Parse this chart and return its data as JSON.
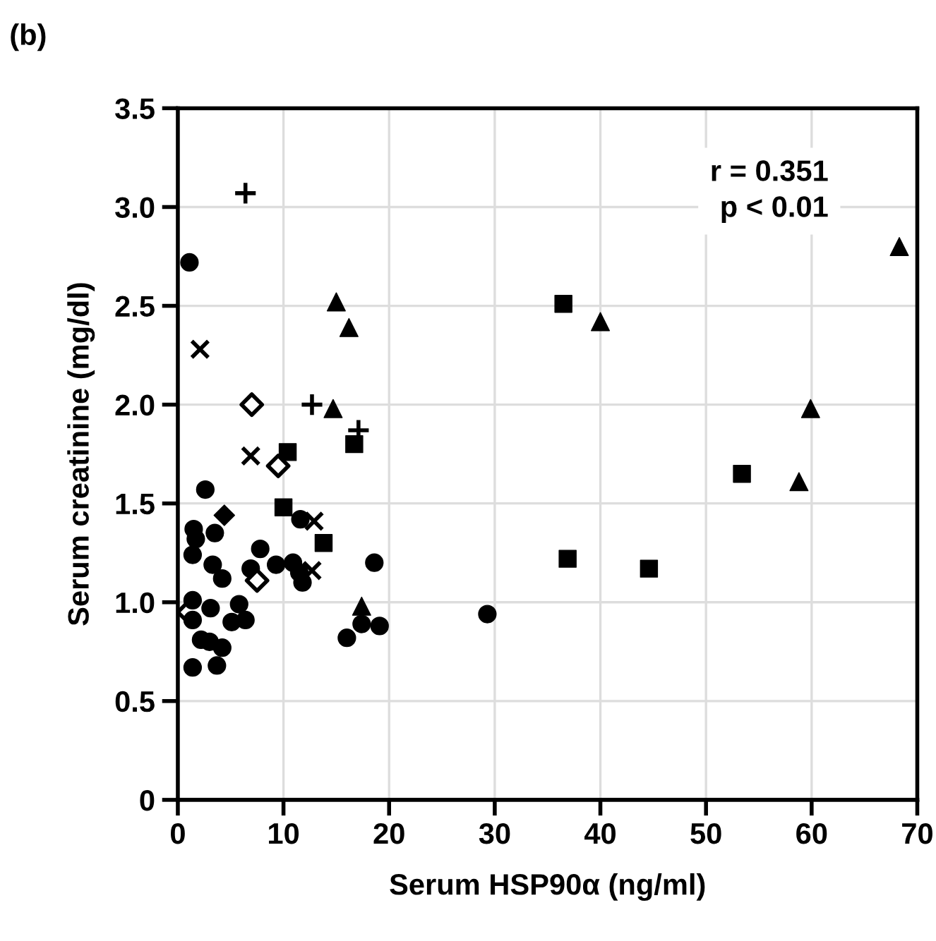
{
  "chart_data": {
    "type": "scatter",
    "title": "(b)",
    "xlabel": "Serum HSP90α (ng/ml)",
    "ylabel": "Serum creatinine (mg/dl)",
    "xlim": [
      0,
      70
    ],
    "ylim": [
      0,
      3.5
    ],
    "xticks": [
      0,
      10,
      20,
      30,
      40,
      50,
      60,
      70
    ],
    "yticks": [
      0,
      0.5,
      {
        "value": 1,
        "label": "1.0"
      },
      1.5,
      {
        "value": 2,
        "label": "2.0"
      },
      2.5,
      {
        "value": 3,
        "label": "3.0"
      },
      3.5
    ],
    "grid": true,
    "legend": false,
    "annotations": [
      "r = 0.351",
      "p < 0.01"
    ],
    "series": [
      {
        "marker": "circle",
        "color": "#000000",
        "x": [
          1.1,
          2.6,
          1.5,
          3.5,
          1.4,
          3.3,
          4.2,
          7.8,
          6.9,
          9.3,
          10.9,
          11.6,
          11.5,
          11.8,
          18.6,
          16.0,
          17.4,
          19.1,
          1.4,
          1.4,
          3.1,
          5.8,
          6.4,
          5.1,
          2.2,
          3.0,
          4.2,
          1.4,
          3.7,
          1.7,
          29.3
        ],
        "values": [
          2.72,
          1.57,
          1.37,
          1.35,
          1.24,
          1.19,
          1.12,
          1.27,
          1.17,
          1.19,
          1.2,
          1.42,
          1.15,
          1.1,
          1.2,
          0.82,
          0.89,
          0.88,
          1.01,
          0.91,
          0.97,
          0.99,
          0.91,
          0.9,
          0.81,
          0.8,
          0.77,
          0.67,
          0.68,
          1.32,
          0.94
        ]
      },
      {
        "marker": "square",
        "color": "#000000",
        "x": [
          10.4,
          16.7,
          10.0,
          13.8,
          36.5,
          36.9,
          44.6,
          53.4
        ],
        "values": [
          1.76,
          1.8,
          1.48,
          1.3,
          2.51,
          1.22,
          1.17,
          1.65
        ]
      },
      {
        "marker": "triangle",
        "color": "#000000",
        "x": [
          40.0,
          59.9,
          58.8,
          68.3,
          15.0,
          16.2,
          14.7,
          17.4
        ],
        "values": [
          2.42,
          1.98,
          1.61,
          2.8,
          2.52,
          2.39,
          1.98,
          0.98
        ]
      },
      {
        "marker": "cross",
        "color": "#000000",
        "x": [
          2.1,
          6.9,
          12.9,
          12.7,
          0.0
        ],
        "values": [
          2.28,
          1.74,
          1.41,
          1.16,
          0.95
        ]
      },
      {
        "marker": "plus",
        "color": "#000000",
        "x": [
          6.4,
          12.7,
          17.1
        ],
        "values": [
          3.07,
          2.0,
          1.87
        ]
      },
      {
        "marker": "diamond-open",
        "color": "#000000",
        "x": [
          7.0,
          9.5,
          7.5
        ],
        "values": [
          2.0,
          1.69,
          1.11
        ]
      },
      {
        "marker": "diamond",
        "color": "#000000",
        "x": [
          4.4
        ],
        "values": [
          1.44
        ]
      }
    ]
  }
}
